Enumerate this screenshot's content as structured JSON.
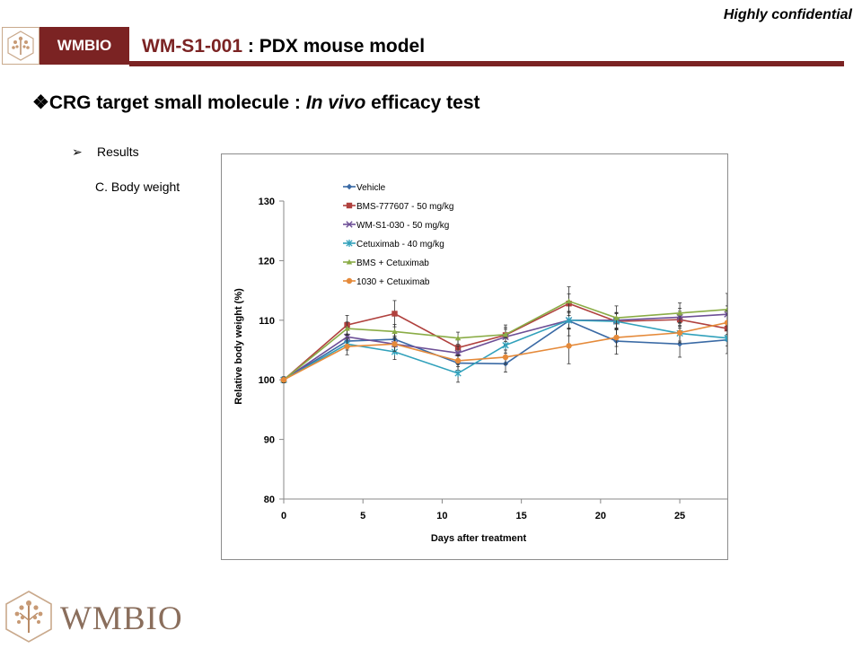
{
  "header": {
    "confidential": "Highly confidential",
    "brand": "WMBIO",
    "title_code": "WM-S1-001",
    "title_rest": " : PDX mouse model"
  },
  "headline": {
    "bullet": "❖",
    "pre": "CRG target small molecule : ",
    "italic": "In vivo",
    "post": " efficacy test"
  },
  "bullet_results": {
    "arrow": "➢",
    "text": "Results"
  },
  "subhead": "C. Body weight",
  "footer": {
    "logo_text": "WMBIO"
  },
  "chart_data": {
    "type": "line",
    "title": "",
    "xlabel": "Days after treatment",
    "ylabel": "Relative body weight (%)",
    "xlim": [
      0,
      28
    ],
    "ylim": [
      80,
      130
    ],
    "xticks": [
      0,
      5,
      10,
      15,
      20,
      25
    ],
    "yticks": [
      80,
      90,
      100,
      110,
      120,
      130
    ],
    "grid": false,
    "legend_position": "top-left",
    "x": [
      0,
      4,
      7,
      11,
      14,
      18,
      21,
      25,
      28
    ],
    "series": [
      {
        "name": "Vehicle",
        "color": "#3a6aa5",
        "marker": "diamond",
        "values": [
          100,
          106.5,
          106.8,
          102.8,
          102.7,
          109.9,
          106.5,
          106.0,
          106.7
        ],
        "errors": [
          0.5,
          1.2,
          1.3,
          1.2,
          1.4,
          2.5,
          2.2,
          2.2,
          2.3
        ]
      },
      {
        "name": "BMS-777607 - 50 mg/kg",
        "color": "#b0413e",
        "marker": "square",
        "values": [
          100,
          109.2,
          111.1,
          105.4,
          107.5,
          112.8,
          109.8,
          110.1,
          108.6
        ],
        "errors": [
          0.5,
          1.6,
          2.2,
          1.3,
          1.7,
          1.6,
          1.3,
          1.4,
          1.2
        ]
      },
      {
        "name": "WM-S1-030 - 50 mg/kg",
        "color": "#6d4f96",
        "marker": "x",
        "values": [
          100,
          107.2,
          106.0,
          104.5,
          107.2,
          110.0,
          110.0,
          110.5,
          111.0
        ],
        "errors": [
          0.5,
          1.6,
          1.4,
          1.2,
          1.3,
          1.5,
          1.3,
          1.5,
          1.4
        ]
      },
      {
        "name": "Cetuximab - 40 mg/kg",
        "color": "#31a1bb",
        "marker": "asterisk",
        "values": [
          100,
          106.0,
          104.7,
          101.1,
          105.8,
          110.0,
          109.8,
          107.8,
          107.0
        ],
        "errors": [
          0.5,
          1.0,
          1.3,
          1.5,
          1.3,
          1.4,
          1.4,
          1.3,
          1.3
        ]
      },
      {
        "name": "BMS + Cetuximab",
        "color": "#8aac46",
        "marker": "triangle",
        "values": [
          100,
          108.6,
          108.1,
          107.0,
          107.6,
          113.2,
          110.4,
          111.2,
          111.8
        ],
        "errors": [
          0.5,
          1.1,
          1.2,
          1.0,
          1.2,
          2.4,
          2.0,
          1.7,
          2.7
        ]
      },
      {
        "name": "1030 + Cetuximab",
        "color": "#e58a3a",
        "marker": "circle",
        "values": [
          100,
          105.6,
          106.0,
          103.2,
          103.8,
          105.7,
          107.1,
          107.9,
          109.6
        ],
        "errors": [
          0.5,
          1.4,
          1.2,
          1.0,
          1.2,
          3.0,
          1.5,
          1.7,
          2.0
        ]
      }
    ]
  }
}
